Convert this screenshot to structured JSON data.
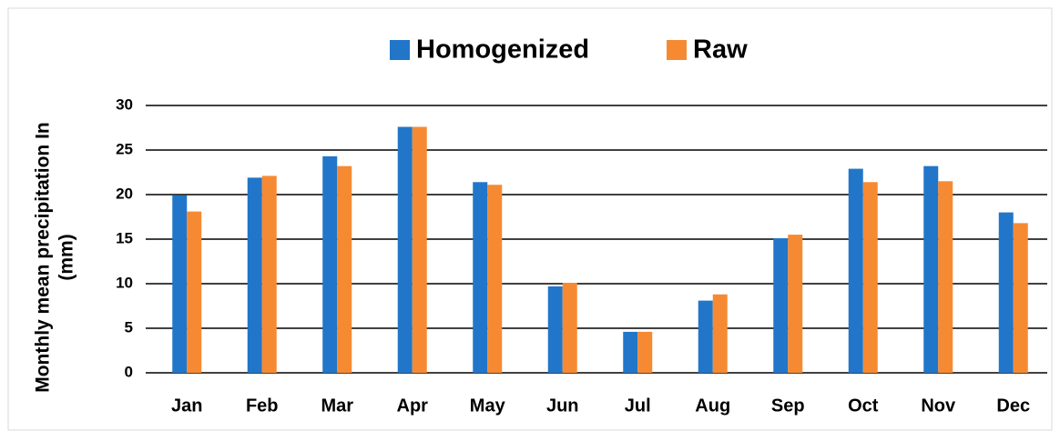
{
  "chart_data": {
    "type": "bar",
    "ylabel": [
      "Monthly mean precipitation In",
      "(mm)"
    ],
    "categories": [
      "Jan",
      "Feb",
      "Mar",
      "Apr",
      "May",
      "Jun",
      "Jul",
      "Aug",
      "Sep",
      "Oct",
      "Nov",
      "Dec"
    ],
    "series": [
      {
        "name": "Homogenized",
        "color": "#2176c9",
        "values": [
          19.9,
          21.9,
          24.3,
          27.6,
          21.4,
          9.7,
          4.6,
          8.1,
          15.1,
          22.9,
          23.2,
          18.0
        ]
      },
      {
        "name": "Raw",
        "color": "#f68a33",
        "values": [
          18.1,
          22.1,
          23.2,
          27.6,
          21.1,
          10.1,
          4.6,
          8.8,
          15.5,
          21.4,
          21.5,
          16.8
        ]
      }
    ],
    "ylim": [
      0,
      30
    ],
    "yticks": [
      0,
      5,
      10,
      15,
      20,
      25,
      30
    ],
    "grid": true,
    "legend": "top"
  }
}
